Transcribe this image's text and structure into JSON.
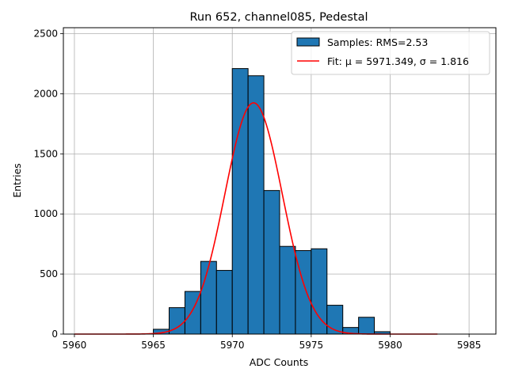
{
  "chart_data": {
    "type": "bar",
    "title": "Run 652, channel085, Pedestal",
    "xlabel": "ADC Counts",
    "ylabel": "Entries",
    "xlim": [
      5959.3,
      5986.7
    ],
    "ylim": [
      0,
      2550
    ],
    "xticks": [
      5960,
      5965,
      5970,
      5975,
      5980,
      5985
    ],
    "yticks": [
      0,
      500,
      1000,
      1500,
      2000,
      2500
    ],
    "grid": true,
    "legend_position": "top-right",
    "series": [
      {
        "name": "Samples: RMS=2.53",
        "kind": "histogram",
        "color": "#1f77b4",
        "edge_color": "#000000",
        "bins": [
          {
            "x0": 5965.0,
            "x1": 5966.0,
            "count": 40
          },
          {
            "x0": 5966.0,
            "x1": 5967.0,
            "count": 220
          },
          {
            "x0": 5967.0,
            "x1": 5968.0,
            "count": 355
          },
          {
            "x0": 5968.0,
            "x1": 5969.0,
            "count": 605
          },
          {
            "x0": 5969.0,
            "x1": 5970.0,
            "count": 530
          },
          {
            "x0": 5970.0,
            "x1": 5971.0,
            "count": 2210
          },
          {
            "x0": 5971.0,
            "x1": 5972.0,
            "count": 2150
          },
          {
            "x0": 5972.0,
            "x1": 5973.0,
            "count": 1195
          },
          {
            "x0": 5973.0,
            "x1": 5974.0,
            "count": 730
          },
          {
            "x0": 5974.0,
            "x1": 5975.0,
            "count": 695
          },
          {
            "x0": 5975.0,
            "x1": 5976.0,
            "count": 710
          },
          {
            "x0": 5976.0,
            "x1": 5977.0,
            "count": 240
          },
          {
            "x0": 5977.0,
            "x1": 5978.0,
            "count": 55
          },
          {
            "x0": 5978.0,
            "x1": 5979.0,
            "count": 140
          },
          {
            "x0": 5979.0,
            "x1": 5980.0,
            "count": 20
          }
        ]
      },
      {
        "name": "Fit: μ = 5971.349, σ = 1.816",
        "kind": "gaussian",
        "color": "#ff0000",
        "mu": 5971.349,
        "sigma": 1.816,
        "amplitude": 1925,
        "x_range": [
          5960,
          5983
        ]
      }
    ]
  }
}
